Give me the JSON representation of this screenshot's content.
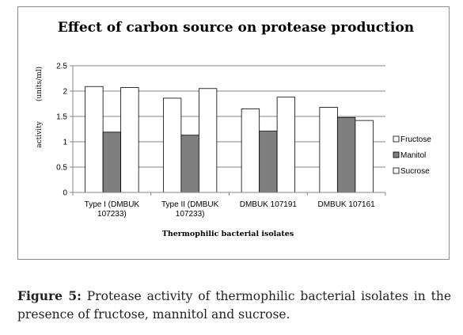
{
  "chart_data": {
    "type": "bar",
    "title": "Effect of carbon source on protease production",
    "xlabel": "Thermophilic bacterial isolates",
    "ylabel": "(units/ml)",
    "ylabel_extra": "activity",
    "ylim": [
      0,
      2.5
    ],
    "yticks": [
      "0",
      "0.5",
      "1",
      "1.5",
      "2",
      "2.5"
    ],
    "categories": [
      [
        "Type I (DMBUK",
        "107233)"
      ],
      [
        "Type II (DMBUK",
        "107233)"
      ],
      [
        "DMBUK 107191"
      ],
      [
        "DMBUK 107161"
      ]
    ],
    "series": [
      {
        "name": "Fructose",
        "values": [
          2.09,
          1.86,
          1.65,
          1.68
        ],
        "color": "#ffffff"
      },
      {
        "name": "Manitol",
        "values": [
          1.19,
          1.13,
          1.21,
          1.48
        ],
        "color": "#7f7f7f"
      },
      {
        "name": "Sucrose",
        "values": [
          2.07,
          2.05,
          1.88,
          1.42
        ],
        "color": "#ffffff"
      }
    ],
    "grid": true,
    "legend": "right"
  },
  "caption": {
    "label": "Figure 5:",
    "text": " Protease activity of thermophilic bacterial isolates in the presence of fructose, mannitol and sucrose."
  }
}
